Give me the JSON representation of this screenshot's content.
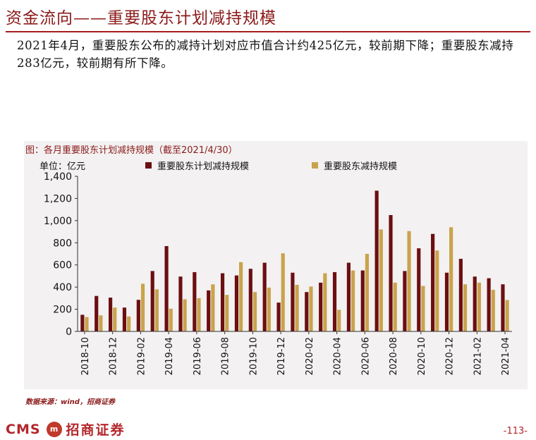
{
  "page": {
    "title": "资金流向——重要股东计划减持规模",
    "summary": "2021年4月，重要股东公布的减持计划对应市值合计约425亿元，较前期下降；重要股东减持283亿元，较前期有所下降。",
    "source": "数据来源：wind，招商证券",
    "brand_latin": "CMS",
    "brand_cn": "招商证券",
    "page_number": "-113-"
  },
  "chart_data": {
    "type": "bar",
    "title": "图：各月重要股东计划减持规模（截至2021/4/30）",
    "ylabel": "单位：亿元",
    "ylim": [
      0,
      1400
    ],
    "yticks": [
      "0",
      "200",
      "400",
      "600",
      "800",
      "1,000",
      "1,200",
      "1,400"
    ],
    "categories": [
      "2018-10",
      "2018-11",
      "2018-12",
      "2019-01",
      "2019-02",
      "2019-03",
      "2019-04",
      "2019-05",
      "2019-06",
      "2019-07",
      "2019-08",
      "2019-09",
      "2019-10",
      "2019-11",
      "2019-12",
      "2020-01",
      "2020-02",
      "2020-03",
      "2020-04",
      "2020-05",
      "2020-06",
      "2020-07",
      "2020-08",
      "2020-09",
      "2020-10",
      "2020-11",
      "2020-12",
      "2021-01",
      "2021-02",
      "2021-03",
      "2021-04"
    ],
    "xtick_labels": [
      "2018-10",
      "2018-12",
      "2019-02",
      "2019-04",
      "2019-06",
      "2019-08",
      "2019-10",
      "2019-12",
      "2020-02",
      "2020-04",
      "2020-06",
      "2020-08",
      "2020-10",
      "2020-12",
      "2021-02",
      "2021-04"
    ],
    "series": [
      {
        "name": "重要股东计划减持规模",
        "color": "#6B0F12",
        "values": [
          150,
          320,
          305,
          215,
          285,
          545,
          770,
          495,
          535,
          370,
          525,
          505,
          565,
          620,
          260,
          530,
          355,
          440,
          535,
          620,
          550,
          1270,
          1050,
          545,
          750,
          880,
          530,
          655,
          495,
          480,
          425
        ]
      },
      {
        "name": "重要股东减持规模",
        "color": "#C9A34C",
        "values": [
          130,
          145,
          215,
          135,
          430,
          380,
          205,
          290,
          300,
          425,
          330,
          625,
          355,
          395,
          705,
          420,
          405,
          525,
          195,
          550,
          700,
          920,
          440,
          905,
          410,
          730,
          940,
          425,
          440,
          375,
          283
        ]
      }
    ],
    "legend_position": "top"
  }
}
